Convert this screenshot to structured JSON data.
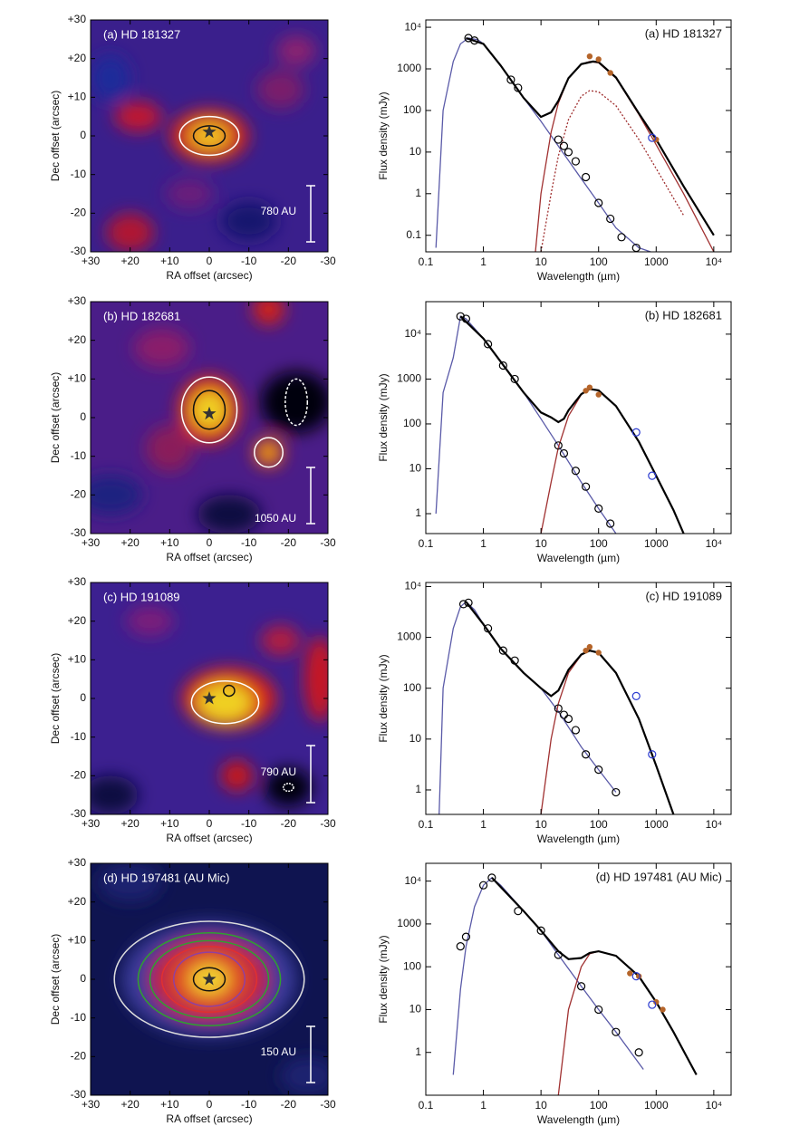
{
  "chart_data": [
    {
      "type": "image",
      "label": "(a) HD 181327",
      "scale_bar": "780 AU",
      "xlabel": "RA offset (arcsec)",
      "ylabel": "Dec offset (arcsec)",
      "xlim": [
        30,
        -30
      ],
      "ylim": [
        -30,
        30
      ],
      "xticks": [
        {
          "value": 30,
          "label": "+30"
        },
        {
          "value": 20,
          "label": "+20"
        },
        {
          "value": 10,
          "label": "+10"
        },
        0,
        -10,
        -20,
        -30
      ],
      "yticks": [
        {
          "value": 30,
          "label": "+30"
        },
        {
          "value": 20,
          "label": "+20"
        },
        {
          "value": 10,
          "label": "+10"
        },
        0,
        -10,
        -20,
        -30
      ],
      "star": {
        "x": 0,
        "y": 1
      }
    },
    {
      "type": "image",
      "label": "(b) HD 182681",
      "scale_bar": "1050 AU",
      "xlabel": "RA offset (arcsec)",
      "ylabel": "Dec offset (arcsec)",
      "xlim": [
        30,
        -30
      ],
      "ylim": [
        -30,
        30
      ],
      "xticks": [
        {
          "value": 30,
          "label": "+30"
        },
        {
          "value": 20,
          "label": "+20"
        },
        {
          "value": 10,
          "label": "+10"
        },
        0,
        -10,
        -20,
        -30
      ],
      "yticks": [
        {
          "value": 30,
          "label": "+30"
        },
        {
          "value": 20,
          "label": "+20"
        },
        {
          "value": 10,
          "label": "+10"
        },
        0,
        -10,
        -20,
        -30
      ],
      "star": {
        "x": 0,
        "y": 1
      }
    },
    {
      "type": "image",
      "label": "(c) HD 191089",
      "scale_bar": "790 AU",
      "xlabel": "RA offset (arcsec)",
      "ylabel": "Dec offset (arcsec)",
      "xlim": [
        30,
        -30
      ],
      "ylim": [
        -30,
        30
      ],
      "xticks": [
        {
          "value": 30,
          "label": "+30"
        },
        {
          "value": 20,
          "label": "+20"
        },
        {
          "value": 10,
          "label": "+10"
        },
        0,
        -10,
        -20,
        -30
      ],
      "yticks": [
        {
          "value": 30,
          "label": "+30"
        },
        {
          "value": 20,
          "label": "+20"
        },
        {
          "value": 10,
          "label": "+10"
        },
        0,
        -10,
        -20,
        -30
      ],
      "star": {
        "x": 0,
        "y": 0
      }
    },
    {
      "type": "image",
      "label": "(d) HD 197481 (AU Mic)",
      "scale_bar": "150 AU",
      "xlabel": "RA offset (arcsec)",
      "ylabel": "Dec offset (arcsec)",
      "xlim": [
        30,
        -30
      ],
      "ylim": [
        -30,
        30
      ],
      "xticks": [
        {
          "value": 30,
          "label": "+30"
        },
        {
          "value": 20,
          "label": "+20"
        },
        {
          "value": 10,
          "label": "+10"
        },
        0,
        -10,
        -20,
        -30
      ],
      "yticks": [
        {
          "value": 30,
          "label": "+30"
        },
        {
          "value": 20,
          "label": "+20"
        },
        {
          "value": 10,
          "label": "+10"
        },
        0,
        -10,
        -20,
        -30
      ],
      "star": {
        "x": 0,
        "y": 0
      }
    },
    {
      "type": "line",
      "log": true,
      "label": "(a) HD 181327",
      "xlabel": "Wavelength (µm)",
      "ylabel": "Flux density (mJy)",
      "xlim": [
        0.1,
        20000
      ],
      "ylim": [
        0.04,
        15000
      ],
      "xticks": [
        0.1,
        1,
        10,
        100,
        1000,
        {
          "value": 10000,
          "label": "10⁴"
        }
      ],
      "yticks": [
        0.1,
        1,
        10,
        100,
        1000,
        {
          "value": 10000,
          "label": "10⁴"
        }
      ],
      "series": [
        {
          "color": "#5a5aa8",
          "x": [
            0.15,
            0.2,
            0.3,
            0.4,
            0.55,
            0.8,
            1,
            2,
            3,
            5,
            10,
            20,
            50,
            100,
            200,
            500,
            800
          ],
          "values": [
            0.05,
            100,
            1500,
            4000,
            5500,
            5000,
            4000,
            1200,
            550,
            200,
            55,
            14,
            2.3,
            0.6,
            0.15,
            0.05,
            0.04
          ]
        },
        {
          "color": "#a03030",
          "x": [
            8,
            10,
            15,
            20,
            30,
            50,
            70,
            100,
            200,
            500,
            1000,
            3000,
            10000
          ],
          "values": [
            0.04,
            1,
            30,
            150,
            600,
            1300,
            1500,
            1400,
            600,
            80,
            15,
            1,
            0.04
          ]
        },
        {
          "color": "#a03030",
          "style": "dotted",
          "x": [
            10,
            15,
            20,
            30,
            50,
            70,
            100,
            200,
            500,
            1000,
            3000
          ],
          "values": [
            0.04,
            1,
            8,
            60,
            220,
            300,
            280,
            130,
            20,
            4,
            0.3
          ]
        },
        {
          "color": "#000000",
          "x": [
            0.5,
            1,
            2,
            5,
            10,
            15,
            20,
            30,
            50,
            80,
            100,
            200,
            500,
            1000,
            3000,
            10000
          ],
          "values": [
            5500,
            4000,
            1200,
            200,
            70,
            90,
            170,
            600,
            1300,
            1500,
            1450,
            620,
            85,
            20,
            1.5,
            0.1
          ]
        }
      ],
      "points": [
        {
          "color": "#000000",
          "marker": "open",
          "x": [
            0.55,
            0.7,
            3,
            4,
            20,
            25,
            30,
            40,
            60,
            100,
            160,
            250,
            450
          ],
          "values": [
            5500,
            4800,
            550,
            350,
            20,
            14,
            10,
            6,
            2.5,
            0.6,
            0.25,
            0.09,
            0.05
          ]
        },
        {
          "color": "#b5652a",
          "marker": "filled",
          "x": [
            70,
            100,
            160,
            1000
          ],
          "values": [
            2000,
            1700,
            800,
            20
          ]
        },
        {
          "color": "#2a3ad0",
          "marker": "open",
          "x": [
            850
          ],
          "values": [
            22
          ]
        }
      ]
    },
    {
      "type": "line",
      "log": true,
      "label": "(b) HD 182681",
      "xlabel": "Wavelength (µm)",
      "ylabel": "Flux density (mJy)",
      "xlim": [
        0.1,
        20000
      ],
      "ylim": [
        0.36,
        53000
      ],
      "xticks": [
        0.1,
        1,
        10,
        100,
        1000,
        {
          "value": 10000,
          "label": "10⁴"
        }
      ],
      "yticks": [
        1,
        10,
        100,
        1000,
        {
          "value": 10000,
          "label": "10⁴"
        }
      ],
      "series": [
        {
          "color": "#5a5aa8",
          "x": [
            0.15,
            0.2,
            0.3,
            0.4,
            0.5,
            1,
            2,
            5,
            10,
            20,
            50,
            100,
            200
          ],
          "values": [
            1,
            500,
            3000,
            25000,
            22000,
            8000,
            2500,
            500,
            130,
            33,
            5,
            1.3,
            0.36
          ]
        },
        {
          "color": "#a03030",
          "x": [
            10,
            15,
            20,
            30,
            50,
            70,
            100,
            200,
            500,
            1000,
            2000,
            3000
          ],
          "values": [
            0.36,
            5,
            30,
            150,
            450,
            600,
            550,
            250,
            40,
            7,
            1.2,
            0.36
          ]
        },
        {
          "color": "#000000",
          "x": [
            0.4,
            1,
            5,
            10,
            15,
            20,
            25,
            30,
            50,
            70,
            100,
            200,
            500,
            1000,
            2000,
            3000
          ],
          "values": [
            25000,
            8000,
            500,
            180,
            140,
            110,
            130,
            200,
            460,
            600,
            560,
            250,
            40,
            7,
            1.2,
            0.36
          ]
        }
      ],
      "points": [
        {
          "color": "#000000",
          "marker": "open",
          "x": [
            0.4,
            0.5,
            1.2,
            2.2,
            3.5,
            20,
            25,
            40,
            60,
            100,
            160
          ],
          "values": [
            25000,
            22000,
            6000,
            2000,
            1000,
            33,
            22,
            9,
            4,
            1.3,
            0.6
          ]
        },
        {
          "color": "#b5652a",
          "marker": "filled",
          "x": [
            60,
            70,
            100
          ],
          "values": [
            550,
            650,
            450
          ]
        },
        {
          "color": "#2a3ad0",
          "marker": "open",
          "x": [
            450,
            850
          ],
          "values": [
            65,
            7
          ]
        }
      ]
    },
    {
      "type": "line",
      "log": true,
      "label": "(c) HD 191089",
      "xlabel": "Wavelength (µm)",
      "ylabel": "Flux density (mJy)",
      "xlim": [
        0.1,
        20000
      ],
      "ylim": [
        0.33,
        12000
      ],
      "xticks": [
        0.1,
        1,
        10,
        100,
        1000,
        {
          "value": 10000,
          "label": "10⁴"
        }
      ],
      "yticks": [
        1,
        10,
        100,
        1000,
        {
          "value": 10000,
          "label": "10⁴"
        }
      ],
      "series": [
        {
          "color": "#5a5aa8",
          "x": [
            0.17,
            0.2,
            0.3,
            0.4,
            0.5,
            0.7,
            1,
            2,
            5,
            10,
            20,
            50,
            100,
            200
          ],
          "values": [
            0.33,
            100,
            1500,
            4000,
            5000,
            3500,
            1800,
            600,
            200,
            100,
            35,
            7,
            2.5,
            0.9
          ]
        },
        {
          "color": "#a03030",
          "x": [
            10,
            15,
            20,
            30,
            50,
            70,
            100,
            200,
            500,
            1000,
            2000
          ],
          "values": [
            0.33,
            10,
            50,
            200,
            450,
            550,
            500,
            200,
            25,
            3,
            0.33
          ]
        },
        {
          "color": "#000000",
          "x": [
            0.5,
            1,
            2,
            5,
            10,
            15,
            20,
            30,
            50,
            70,
            100,
            200,
            500,
            1000,
            2000
          ],
          "values": [
            5000,
            1800,
            600,
            200,
            100,
            70,
            90,
            230,
            460,
            550,
            500,
            200,
            25,
            3,
            0.33
          ]
        }
      ],
      "points": [
        {
          "color": "#000000",
          "marker": "open",
          "x": [
            0.45,
            0.55,
            1.2,
            2.2,
            3.5,
            20,
            25,
            30,
            40,
            60,
            100,
            200
          ],
          "values": [
            4500,
            4800,
            1500,
            550,
            350,
            40,
            30,
            25,
            15,
            5,
            2.5,
            0.9
          ]
        },
        {
          "color": "#b5652a",
          "marker": "filled",
          "x": [
            60,
            70,
            100
          ],
          "values": [
            550,
            650,
            500
          ]
        },
        {
          "color": "#2a3ad0",
          "marker": "open",
          "x": [
            450,
            850
          ],
          "values": [
            70,
            5
          ]
        }
      ]
    },
    {
      "type": "line",
      "log": true,
      "label": "(d) HD 197481 (AU Mic)",
      "xlabel": "Wavelength (µm)",
      "ylabel": "Flux density (mJy)",
      "xlim": [
        0.1,
        20000
      ],
      "ylim": [
        0.1,
        26000
      ],
      "xticks": [
        0.1,
        1,
        10,
        100,
        1000,
        {
          "value": 10000,
          "label": "10⁴"
        }
      ],
      "yticks": [
        1,
        10,
        100,
        1000,
        {
          "value": 10000,
          "label": "10⁴"
        }
      ],
      "series": [
        {
          "color": "#5a5aa8",
          "x": [
            0.3,
            0.4,
            0.5,
            0.7,
            1,
            1.4,
            2,
            5,
            10,
            20,
            50,
            100,
            200,
            600
          ],
          "values": [
            0.3,
            30,
            300,
            2500,
            8000,
            12000,
            8000,
            2000,
            700,
            190,
            35,
            10,
            3,
            0.4
          ]
        },
        {
          "color": "#a03030",
          "x": [
            20,
            30,
            50,
            70,
            100,
            200,
            500,
            1000,
            2000,
            5000
          ],
          "values": [
            0.1,
            10,
            100,
            200,
            230,
            180,
            60,
            15,
            3,
            0.3
          ]
        },
        {
          "color": "#000000",
          "x": [
            1.4,
            5,
            10,
            20,
            30,
            50,
            70,
            100,
            200,
            500,
            1000,
            2000,
            5000
          ],
          "values": [
            12000,
            2000,
            700,
            230,
            150,
            160,
            210,
            230,
            180,
            60,
            15,
            3,
            0.3
          ]
        }
      ],
      "points": [
        {
          "color": "#000000",
          "marker": "open",
          "x": [
            0.4,
            0.5,
            1,
            1.4,
            4,
            10,
            20,
            50,
            100,
            200,
            500
          ],
          "values": [
            300,
            500,
            8000,
            12000,
            2000,
            700,
            190,
            35,
            10,
            3,
            1
          ]
        },
        {
          "color": "#b5652a",
          "marker": "filled",
          "x": [
            350,
            500,
            1000,
            1300
          ],
          "values": [
            70,
            60,
            15,
            10
          ]
        },
        {
          "color": "#2a3ad0",
          "marker": "open",
          "x": [
            450,
            850
          ],
          "values": [
            60,
            13
          ]
        }
      ]
    }
  ]
}
